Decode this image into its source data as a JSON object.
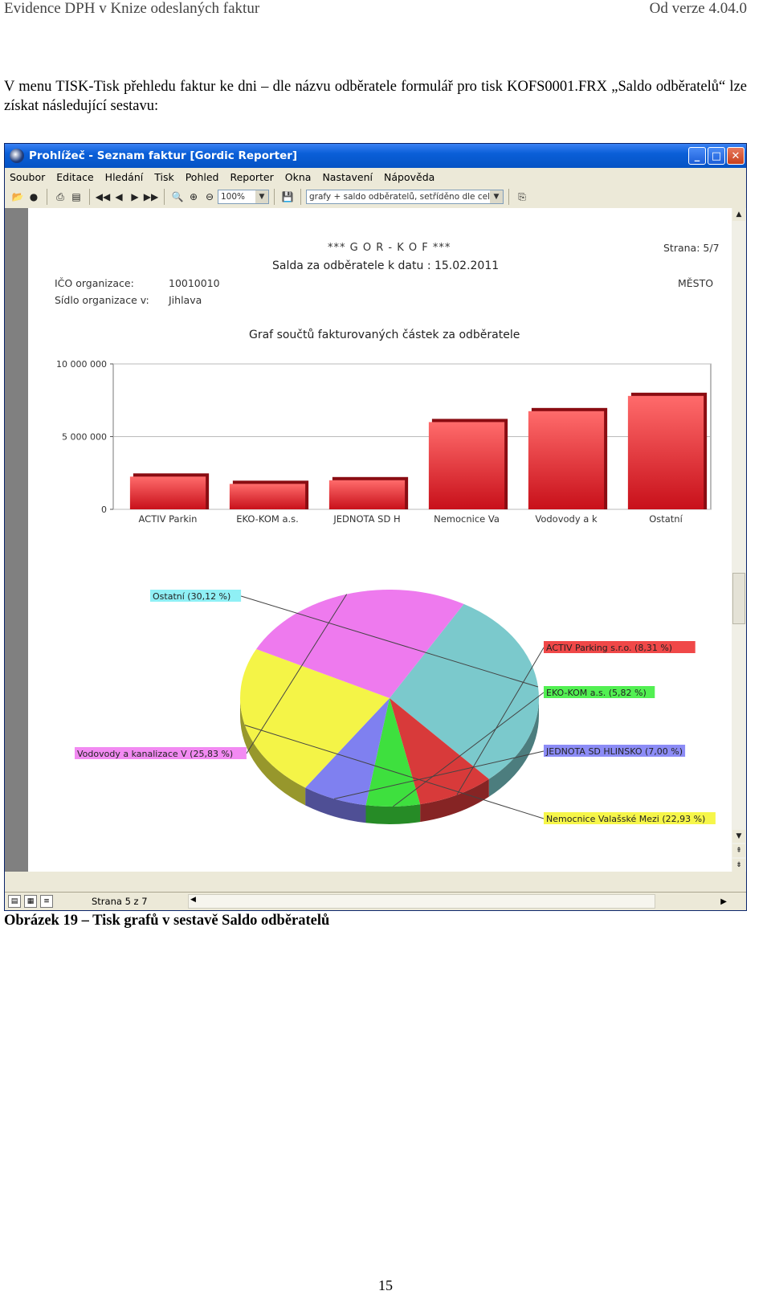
{
  "doc": {
    "header_left": "Evidence DPH v Knize odeslaných faktur",
    "header_right": "Od verze 4.04.0",
    "intro": "V menu TISK-Tisk přehledu faktur ke dni – dle názvu odběratele formulář pro tisk KOFS0001.FRX „Saldo odběratelů“ lze získat následující sestavu:",
    "caption": "Obrázek 19 – Tisk grafů v sestavě Saldo odběratelů",
    "page_number": "15"
  },
  "window": {
    "title": "Prohlížeč - Seznam faktur [Gordic Reporter]",
    "menu": [
      "Soubor",
      "Editace",
      "Hledání",
      "Tisk",
      "Pohled",
      "Reporter",
      "Okna",
      "Nastavení",
      "Nápověda"
    ],
    "zoom": "100%",
    "report_select": "grafy + saldo odběratelů, setříděno dle celkov",
    "status_page": "Strana 5 z 7",
    "icons": [
      "open-icon",
      "dot-icon",
      "print-icon",
      "page-setup-icon",
      "first-page-icon",
      "prev-page-icon",
      "next-page-icon",
      "last-page-icon",
      "find-icon",
      "zoom-in-icon",
      "zoom-out-icon",
      "save-icon",
      "export-icon"
    ]
  },
  "report": {
    "company": "***   G O R  -  K O F   ***",
    "page": "Strana: 5/7",
    "title": "Salda za odběratele k datu : 15.02.2011",
    "ico_label": "IČO organizace:",
    "ico_value": "10010010",
    "seat_label": "Sídlo organizace v:",
    "seat_value": "Jihlava",
    "city": "MĚSTO",
    "chart_title": "Graf součtů fakturovaných  částek za odběratele"
  },
  "chart_data": [
    {
      "type": "bar",
      "title": "Graf součtů fakturovaných  částek za odběratele",
      "categories": [
        "ACTIV Parkin",
        "EKO-KOM a.s.",
        "JEDNOTA SD H",
        "Nemocnice Va",
        "Vodovody a k",
        "Ostatní"
      ],
      "values": [
        2250000,
        1750000,
        2000000,
        6000000,
        6750000,
        7800000
      ],
      "ylim": [
        0,
        10000000
      ],
      "yticks": [
        "0",
        "5 000 000",
        "10 000 000"
      ],
      "ytick_values": [
        0,
        5000000,
        10000000
      ],
      "grid": true,
      "color": "#e8292b"
    },
    {
      "type": "pie",
      "slices": [
        {
          "label": "Ostatní (30,12 %)",
          "value": 30.12,
          "color": "#7bc9cc",
          "label_bg": "#8ff0f5"
        },
        {
          "label": "ACTIV Parking s.r.o. (8,31 %)",
          "value": 8.31,
          "color": "#d83a3a",
          "label_bg": "#f04848"
        },
        {
          "label": "EKO-KOM a.s. (5,82 %)",
          "value": 5.82,
          "color": "#3ee03e",
          "label_bg": "#52f052"
        },
        {
          "label": "JEDNOTA SD HLINSKO (7,00 %)",
          "value": 7.0,
          "color": "#7f80f0",
          "label_bg": "#8c8cf6"
        },
        {
          "label": "Nemocnice Valašské Mezi (22,93 %)",
          "value": 22.93,
          "color": "#f4f447",
          "label_bg": "#f6f64a"
        },
        {
          "label": "Vodovody a kanalizace V (25,83 %)",
          "value": 25.83,
          "color": "#ee7aee",
          "label_bg": "#f28af2"
        }
      ]
    }
  ]
}
